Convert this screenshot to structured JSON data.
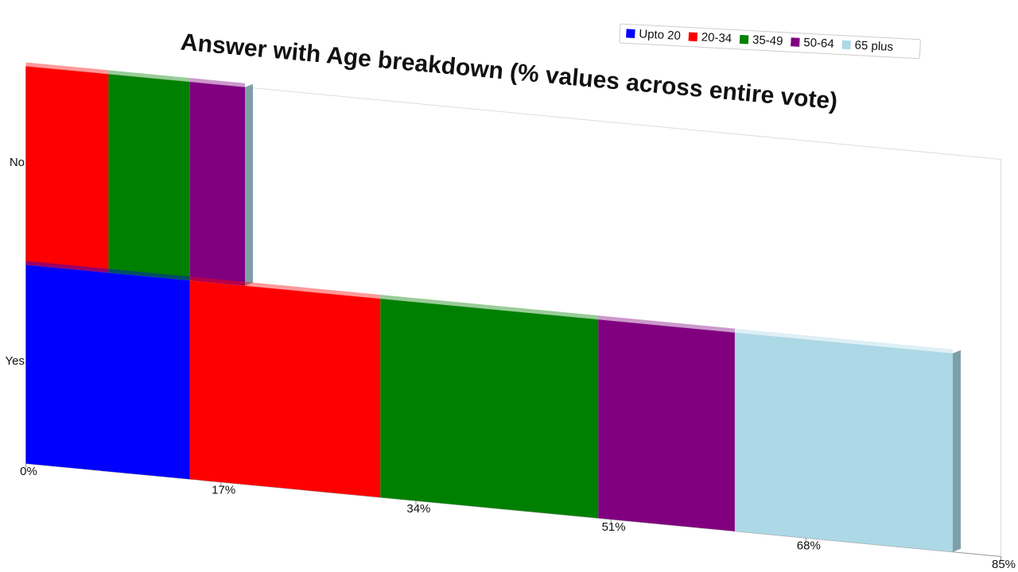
{
  "chart_data": {
    "type": "bar",
    "orientation": "horizontal",
    "stacked": true,
    "title": "Answer with Age breakdown (% values across entire vote)",
    "categories": [
      "No",
      "Yes"
    ],
    "series": [
      {
        "name": "Upto 20",
        "color": "#0000ff",
        "values": [
          0,
          14.3
        ]
      },
      {
        "name": "20-34",
        "color": "#ff0000",
        "values": [
          7.2,
          16.6
        ]
      },
      {
        "name": "35-49",
        "color": "#008000",
        "values": [
          7.1,
          19
        ]
      },
      {
        "name": "50-64",
        "color": "#800080",
        "values": [
          4.8,
          11.9
        ]
      },
      {
        "name": "65 plus",
        "color": "#add8e6",
        "values": [
          0,
          19
        ]
      }
    ],
    "xlim": [
      0,
      85
    ],
    "xticks": [
      {
        "value": 0,
        "label": "0%"
      },
      {
        "value": 17,
        "label": "17%"
      },
      {
        "value": 34,
        "label": "34%"
      },
      {
        "value": 51,
        "label": "51%"
      },
      {
        "value": 68,
        "label": "68%"
      },
      {
        "value": 85,
        "label": "85%"
      }
    ],
    "legend": "top-right"
  }
}
